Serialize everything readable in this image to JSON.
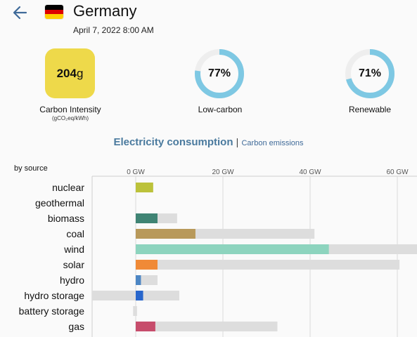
{
  "header": {
    "country": "Germany",
    "datetime": "April 7, 2022 8:00 AM",
    "flag_colors": [
      "#000000",
      "#dd0000",
      "#ffce00"
    ]
  },
  "metrics": {
    "carbon_intensity": {
      "value": "204",
      "unit": "g",
      "label": "Carbon Intensity",
      "sublabel": "(gCO₂eq/kWh)",
      "color": "#eed94a"
    },
    "low_carbon": {
      "value_text": "77%",
      "fraction": 0.77,
      "label": "Low-carbon"
    },
    "renewable": {
      "value_text": "71%",
      "fraction": 0.71,
      "label": "Renewable"
    },
    "ring_color": "#7ec8e3",
    "ring_track_color": "#eeeeee"
  },
  "tabs": {
    "active": "Electricity consumption",
    "separator": "|",
    "inactive": "Carbon emissions"
  },
  "chart_data": {
    "type": "bar",
    "title": "",
    "ylabel": "by source",
    "xlabel": "",
    "x_ticks": [
      "0 GW",
      "20 GW",
      "40 GW",
      "60 GW"
    ],
    "x_tick_values": [
      0,
      20,
      40,
      60
    ],
    "xlim": [
      -10,
      65
    ],
    "categories": [
      "nuclear",
      "geothermal",
      "biomass",
      "coal",
      "wind",
      "solar",
      "hydro",
      "hydro storage",
      "battery storage",
      "gas"
    ],
    "series": [
      {
        "values": [
          4,
          0,
          5,
          13.7,
          44.3,
          5,
          1.2,
          1.7,
          0,
          4.5
        ],
        "color": ""
      },
      {
        "values": [
          4,
          0,
          9.5,
          41,
          66,
          60.5,
          5,
          10,
          0.3,
          32.5
        ],
        "color": "#dddddd"
      }
    ],
    "capacity_min": [
      0,
      0,
      0,
      0,
      0,
      0,
      0,
      -10,
      -0.6,
      0
    ],
    "colors": [
      "#bcc23a",
      "#cccccc",
      "#3f8474",
      "#b8995a",
      "#8dd4be",
      "#f08a37",
      "#4d86c4",
      "#2866cc",
      "#aaaaaa",
      "#c74d6c"
    ]
  }
}
